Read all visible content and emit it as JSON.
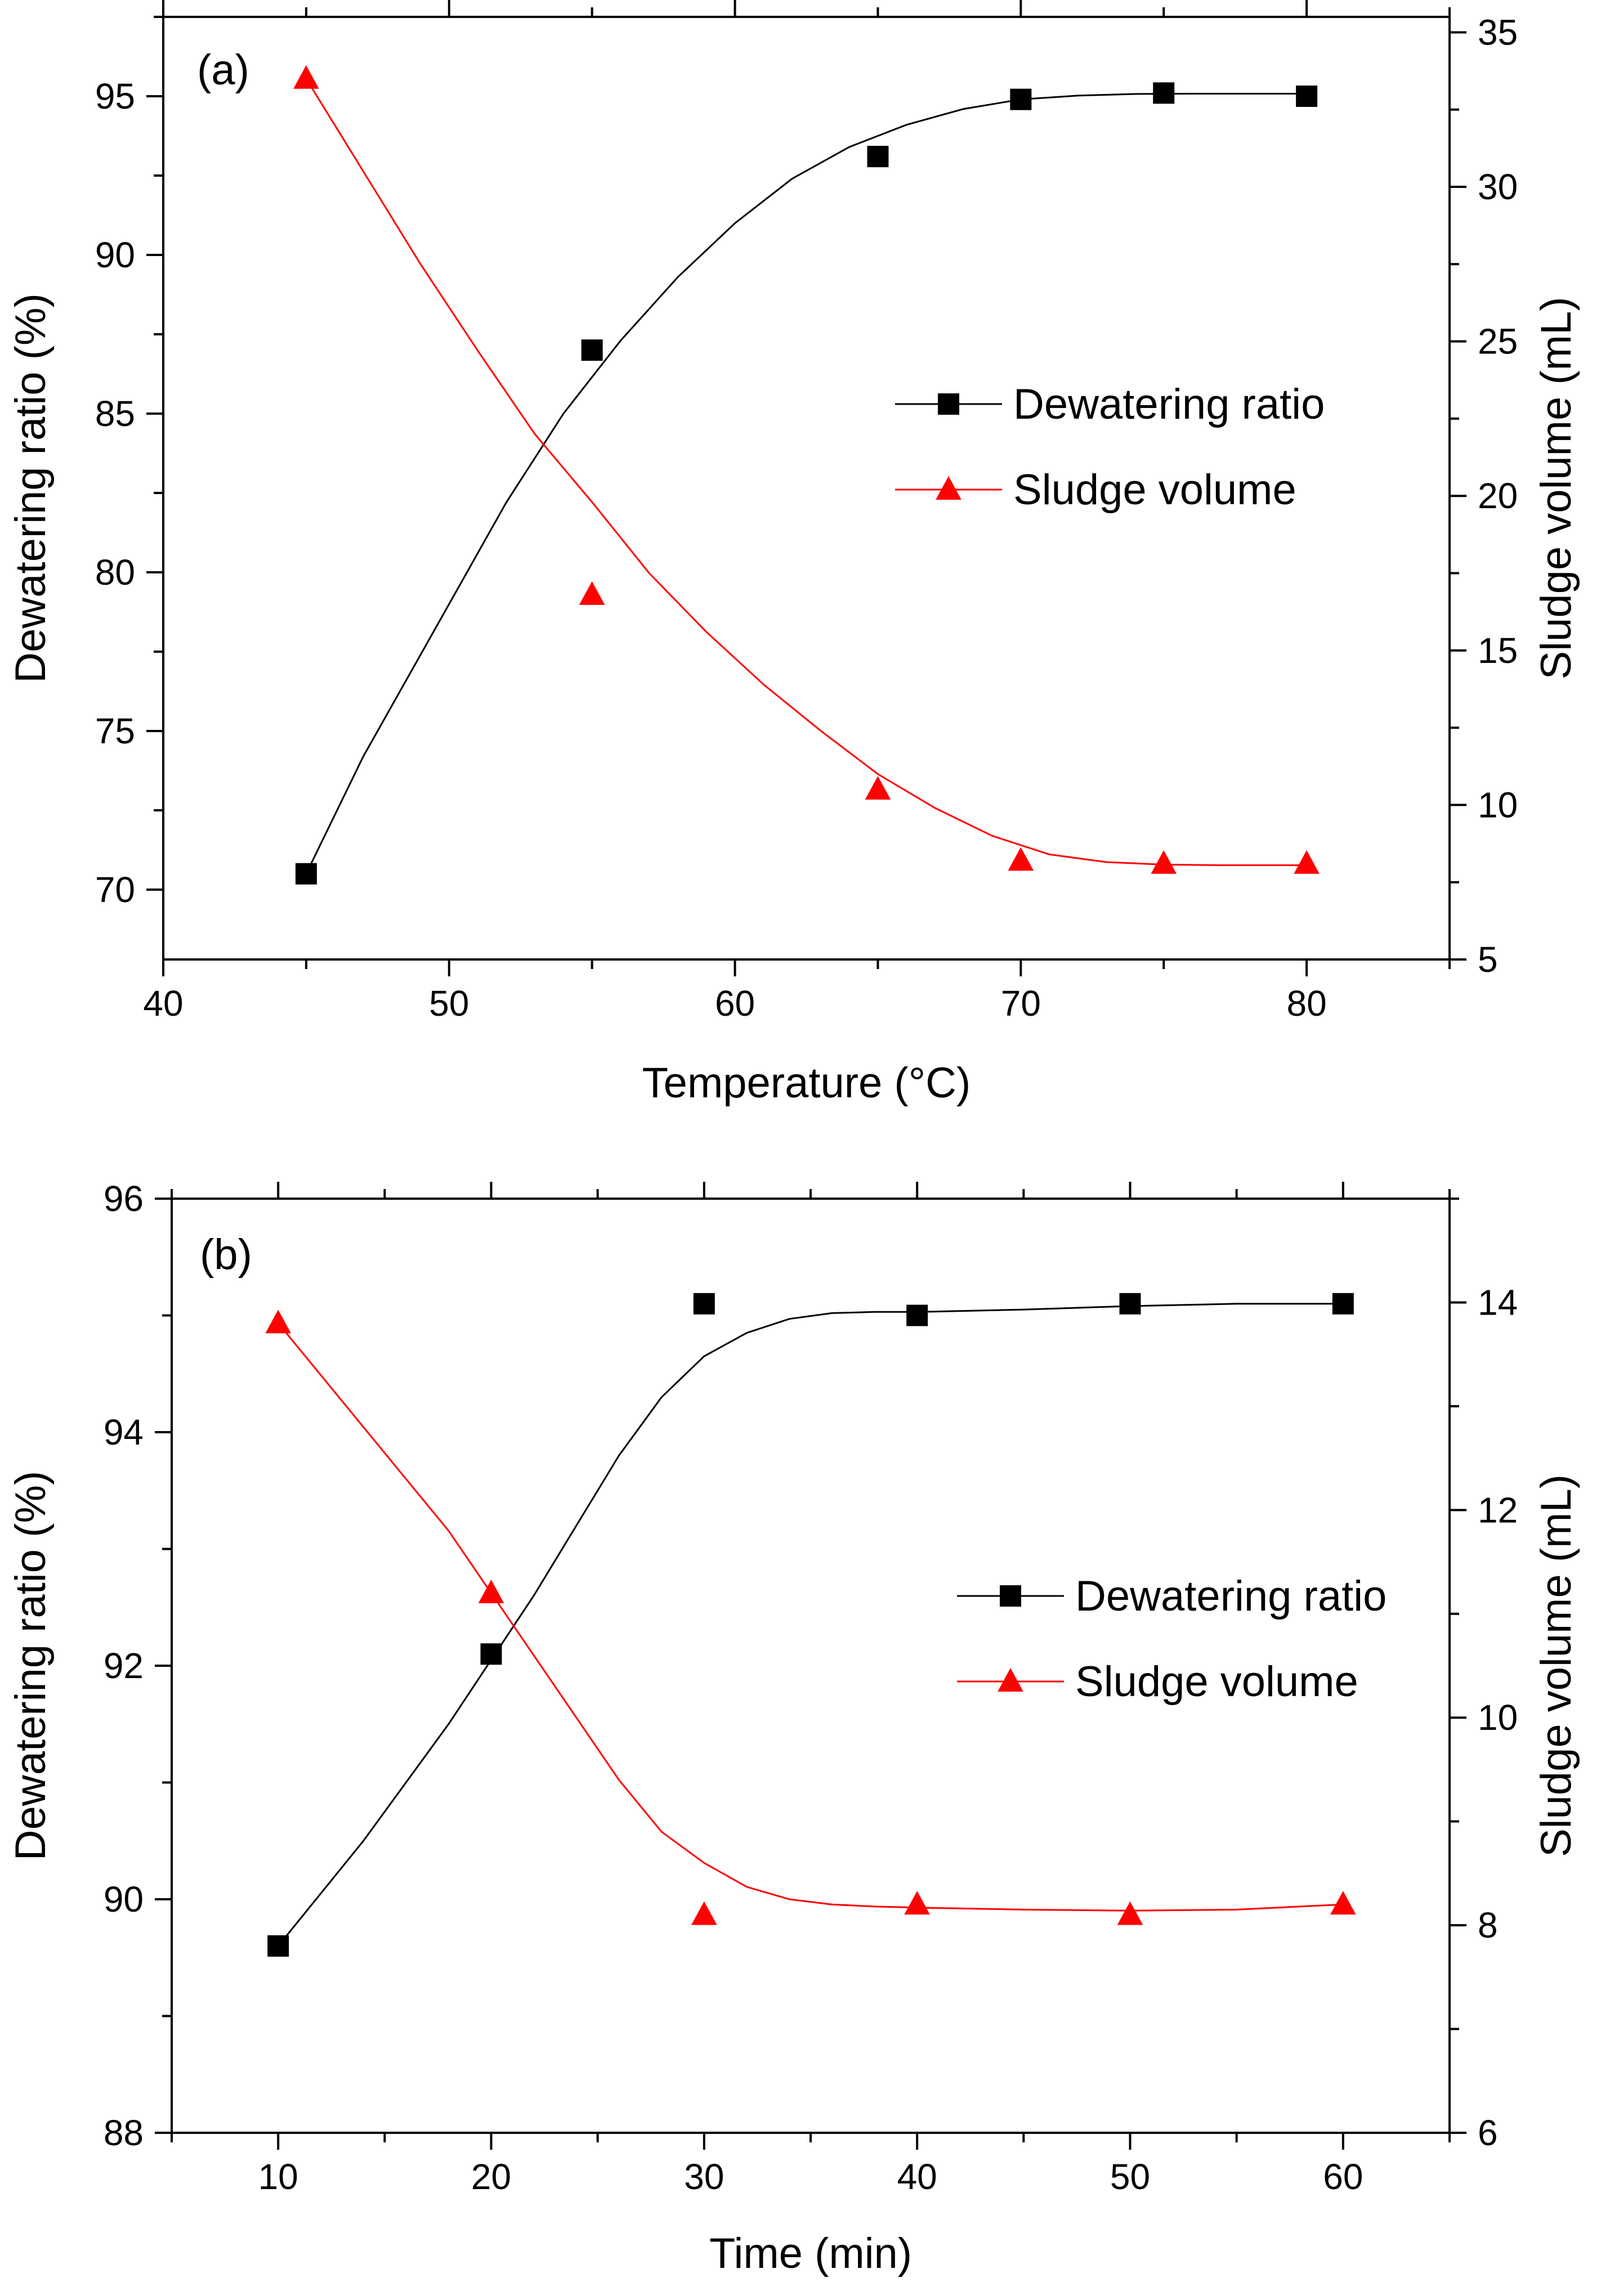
{
  "chart_data": [
    {
      "type": "line",
      "panel_label": "(a)",
      "xlabel": "Temperature (°C)",
      "ylabel_left": "Dewatering ratio (%)",
      "ylabel_right": "Sludge volume (mL)",
      "xlim": [
        40,
        85
      ],
      "ylim_left": [
        67.8,
        97.5
      ],
      "ylim_right": [
        5,
        35.5
      ],
      "x_ticks": [
        40,
        50,
        60,
        70,
        80
      ],
      "x_tick_labels": [
        "40",
        "50",
        "60",
        "70",
        "80"
      ],
      "x_minor_step": 5,
      "y_left_ticks": [
        70,
        75,
        80,
        85,
        90,
        95
      ],
      "y_left_tick_labels": [
        "70",
        "75",
        "80",
        "85",
        "90",
        "95"
      ],
      "y_left_minor_step": 2.5,
      "y_right_ticks": [
        5,
        10,
        15,
        20,
        25,
        30,
        35
      ],
      "y_right_tick_labels": [
        "5",
        "10",
        "15",
        "20",
        "25",
        "30",
        "35"
      ],
      "y_right_minor_step": 2.5,
      "grid": false,
      "legend_position": "center-right",
      "series": [
        {
          "name": "Dewatering ratio",
          "axis": "left",
          "marker": "square",
          "color": "#000000",
          "x": [
            45,
            55,
            65,
            70,
            75,
            80
          ],
          "values": [
            70.5,
            87.0,
            93.1,
            94.9,
            95.1,
            95.0
          ],
          "fit_x": [
            45,
            47,
            50,
            52,
            54,
            56,
            58,
            60,
            62,
            64,
            66,
            68,
            70,
            72,
            74,
            76,
            78,
            80
          ],
          "fit_y": [
            70.5,
            74.2,
            79.0,
            82.2,
            85.0,
            87.3,
            89.3,
            91.0,
            92.4,
            93.4,
            94.1,
            94.6,
            94.9,
            95.02,
            95.07,
            95.08,
            95.08,
            95.08
          ]
        },
        {
          "name": "Sludge volume",
          "axis": "right",
          "marker": "triangle",
          "color": "#ff0000",
          "x": [
            45,
            55,
            65,
            70,
            75,
            80
          ],
          "values": [
            33.5,
            16.8,
            10.5,
            8.2,
            8.1,
            8.1
          ],
          "fit_x": [
            45,
            47,
            49,
            51,
            53,
            55,
            57,
            59,
            61,
            63,
            65,
            67,
            69,
            71,
            73,
            75,
            77,
            80
          ],
          "fit_y": [
            33.5,
            30.5,
            27.5,
            24.7,
            22.0,
            19.8,
            17.5,
            15.6,
            13.9,
            12.4,
            11.0,
            9.9,
            9.0,
            8.4,
            8.15,
            8.07,
            8.05,
            8.05
          ]
        }
      ]
    },
    {
      "type": "line",
      "panel_label": "(b)",
      "xlabel": "Time (min)",
      "ylabel_left": "Dewatering ratio (%)",
      "ylabel_right": "Sludge volume (mL)",
      "xlim": [
        5,
        65
      ],
      "ylim_left": [
        88,
        96
      ],
      "ylim_right": [
        6,
        15
      ],
      "x_ticks": [
        10,
        20,
        30,
        40,
        50,
        60
      ],
      "x_tick_labels": [
        "10",
        "20",
        "30",
        "40",
        "50",
        "60"
      ],
      "x_minor_step": 5,
      "y_left_ticks": [
        88,
        90,
        92,
        94,
        96
      ],
      "y_left_tick_labels": [
        "88",
        "90",
        "92",
        "94",
        "96"
      ],
      "y_left_minor_step": 1,
      "y_right_ticks": [
        6,
        8,
        10,
        12,
        14
      ],
      "y_right_tick_labels": [
        "6",
        "8",
        "10",
        "12",
        "14"
      ],
      "y_right_minor_step": 1,
      "grid": false,
      "legend_position": "center-right",
      "series": [
        {
          "name": "Dewatering ratio",
          "axis": "left",
          "marker": "square",
          "color": "#000000",
          "x": [
            10,
            20,
            30,
            40,
            50,
            60
          ],
          "values": [
            89.6,
            92.1,
            95.1,
            95.0,
            95.1,
            95.1
          ],
          "fit_x": [
            10,
            14,
            18,
            22,
            24,
            26,
            28,
            30,
            32,
            34,
            36,
            38,
            40,
            45,
            50,
            55,
            60
          ],
          "fit_y": [
            89.6,
            90.5,
            91.5,
            92.6,
            93.2,
            93.8,
            94.3,
            94.65,
            94.85,
            94.97,
            95.02,
            95.03,
            95.03,
            95.05,
            95.08,
            95.1,
            95.1
          ]
        },
        {
          "name": "Sludge volume",
          "axis": "right",
          "marker": "triangle",
          "color": "#ff0000",
          "x": [
            10,
            20,
            30,
            40,
            50,
            60
          ],
          "values": [
            13.8,
            11.2,
            8.1,
            8.2,
            8.1,
            8.2
          ],
          "fit_x": [
            10,
            14,
            18,
            20,
            22,
            24,
            26,
            28,
            30,
            32,
            34,
            36,
            38,
            40,
            45,
            50,
            55,
            60
          ],
          "fit_y": [
            13.8,
            12.8,
            11.8,
            11.2,
            10.6,
            10.0,
            9.4,
            8.9,
            8.6,
            8.37,
            8.25,
            8.2,
            8.18,
            8.17,
            8.15,
            8.14,
            8.15,
            8.2
          ]
        }
      ]
    }
  ]
}
